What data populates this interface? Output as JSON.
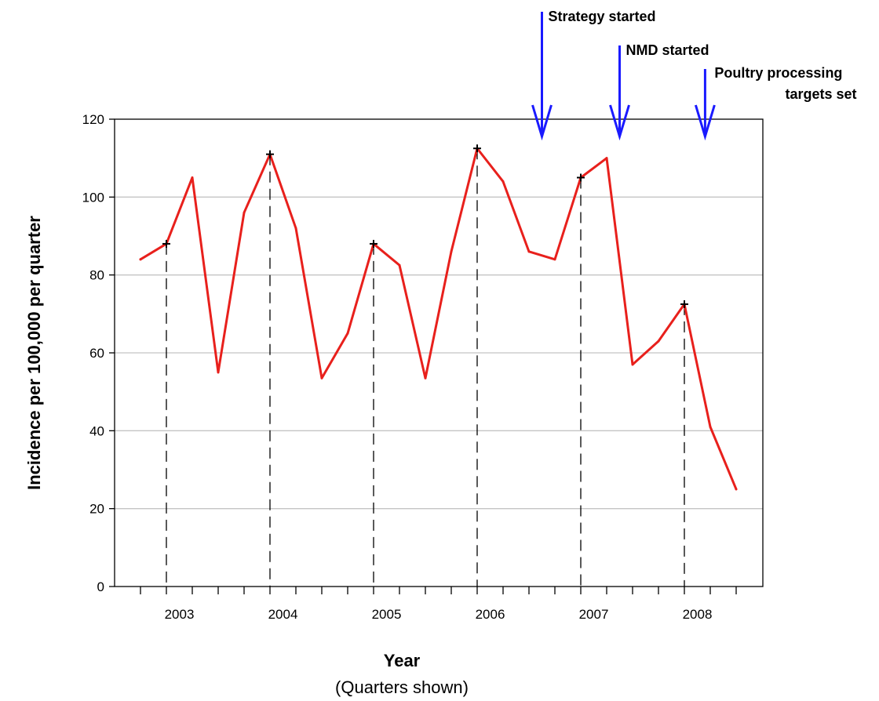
{
  "chart_data": {
    "type": "line",
    "title": "",
    "xlabel": "Year",
    "xlabel_sub": "(Quarters shown)",
    "ylabel": "Incidence per 100,000 per quarter",
    "ylim": [
      0,
      120
    ],
    "yticks": [
      0,
      20,
      40,
      60,
      80,
      100,
      120
    ],
    "grid": true,
    "year_labels": [
      "2003",
      "2004",
      "2005",
      "2006",
      "2007",
      "2008"
    ],
    "series": [
      {
        "color": "#e8201c",
        "values": [
          84,
          88,
          105,
          55,
          96,
          111,
          92,
          53.5,
          65,
          88,
          82.5,
          53.5,
          86,
          112.5,
          104,
          86,
          84,
          105,
          110,
          57,
          63,
          72.5,
          41,
          25
        ]
      }
    ],
    "marked_quarters": [
      1,
      5,
      9,
      13,
      17,
      21
    ],
    "annotations": [
      {
        "lines": [
          "Strategy started"
        ],
        "x": 15.5
      },
      {
        "lines": [
          "NMD started"
        ],
        "x": 18.5
      },
      {
        "lines": [
          "Poultry processing",
          "targets set"
        ],
        "x": 21.8
      }
    ],
    "arrow_color": "#1a1aff"
  }
}
